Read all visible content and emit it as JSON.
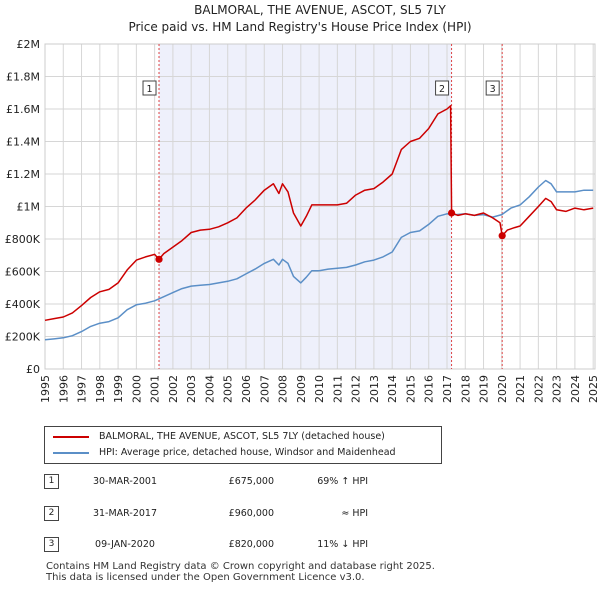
{
  "chart_data": {
    "type": "line",
    "title": "BALMORAL, THE AVENUE, ASCOT, SL5 7LY",
    "subtitle": "Price paid vs. HM Land Registry's House Price Index (HPI)",
    "xlim": [
      1995,
      2025.1
    ],
    "ylim": [
      0,
      2000000
    ],
    "x_ticks": [
      "1995",
      "1996",
      "1997",
      "1998",
      "1999",
      "2000",
      "2001",
      "2002",
      "2003",
      "2004",
      "2005",
      "2006",
      "2007",
      "2008",
      "2009",
      "2010",
      "2011",
      "2012",
      "2013",
      "2014",
      "2015",
      "2016",
      "2017",
      "2018",
      "2019",
      "2020",
      "2021",
      "2022",
      "2023",
      "2024",
      "2025"
    ],
    "y_ticks": [
      {
        "value": 0,
        "label": "£0"
      },
      {
        "value": 200000,
        "label": "£200K"
      },
      {
        "value": 400000,
        "label": "£400K"
      },
      {
        "value": 600000,
        "label": "£600K"
      },
      {
        "value": 800000,
        "label": "£800K"
      },
      {
        "value": 1000000,
        "label": "£1M"
      },
      {
        "value": 1200000,
        "label": "£1.2M"
      },
      {
        "value": 1400000,
        "label": "£1.4M"
      },
      {
        "value": 1600000,
        "label": "£1.6M"
      },
      {
        "value": 1800000,
        "label": "£1.8M"
      },
      {
        "value": 2000000,
        "label": "£2M"
      }
    ],
    "shaded_region": [
      2001.24,
      2017.25
    ],
    "series": [
      {
        "name": "BALMORAL, THE AVENUE, ASCOT, SL5 7LY (detached house)",
        "color": "#cc0000",
        "x": [
          1995,
          1995.5,
          1996,
          1996.5,
          1997,
          1997.5,
          1998,
          1998.5,
          1999,
          1999.5,
          2000,
          2000.5,
          2001,
          2001.24,
          2001.5,
          2002,
          2002.5,
          2003,
          2003.5,
          2004,
          2004.5,
          2005,
          2005.5,
          2006,
          2006.5,
          2007,
          2007.5,
          2007.8,
          2008,
          2008.3,
          2008.6,
          2009,
          2009.3,
          2009.6,
          2010,
          2010.5,
          2011,
          2011.5,
          2012,
          2012.5,
          2013,
          2013.5,
          2014,
          2014.5,
          2015,
          2015.5,
          2016,
          2016.5,
          2017,
          2017.2,
          2017.25,
          2017.6,
          2018,
          2018.5,
          2019,
          2019.5,
          2019.9,
          2020.02,
          2020.3,
          2020.7,
          2021,
          2021.5,
          2022,
          2022.4,
          2022.7,
          2023,
          2023.5,
          2024,
          2024.5,
          2025
        ],
        "values": [
          300000,
          310000,
          320000,
          345000,
          390000,
          440000,
          475000,
          490000,
          530000,
          610000,
          670000,
          690000,
          705000,
          675000,
          710000,
          750000,
          790000,
          840000,
          855000,
          860000,
          875000,
          900000,
          930000,
          990000,
          1040000,
          1100000,
          1140000,
          1080000,
          1140000,
          1090000,
          960000,
          880000,
          940000,
          1010000,
          1010000,
          1010000,
          1010000,
          1020000,
          1070000,
          1100000,
          1110000,
          1150000,
          1200000,
          1350000,
          1400000,
          1420000,
          1480000,
          1570000,
          1600000,
          1620000,
          960000,
          945000,
          955000,
          945000,
          960000,
          930000,
          900000,
          820000,
          855000,
          870000,
          880000,
          940000,
          1000000,
          1050000,
          1030000,
          980000,
          970000,
          990000,
          980000,
          990000
        ]
      },
      {
        "name": "HPI: Average price, detached house, Windsor and Maidenhead",
        "color": "#5b8fc7",
        "x": [
          1995,
          1995.5,
          1996,
          1996.5,
          1997,
          1997.5,
          1998,
          1998.5,
          1999,
          1999.5,
          2000,
          2000.5,
          2001,
          2001.5,
          2002,
          2002.5,
          2003,
          2003.5,
          2004,
          2004.5,
          2005,
          2005.5,
          2006,
          2006.5,
          2007,
          2007.5,
          2007.8,
          2008,
          2008.3,
          2008.6,
          2009,
          2009.3,
          2009.6,
          2010,
          2010.5,
          2011,
          2011.5,
          2012,
          2012.5,
          2013,
          2013.5,
          2014,
          2014.5,
          2015,
          2015.5,
          2016,
          2016.5,
          2017,
          2017.5,
          2018,
          2018.5,
          2019,
          2019.5,
          2020,
          2020.5,
          2021,
          2021.5,
          2022,
          2022.4,
          2022.7,
          2023,
          2023.5,
          2024,
          2024.5,
          2025
        ],
        "values": [
          180000,
          185000,
          192000,
          205000,
          230000,
          262000,
          282000,
          292000,
          315000,
          365000,
          395000,
          405000,
          420000,
          445000,
          470000,
          495000,
          510000,
          515000,
          520000,
          530000,
          540000,
          555000,
          585000,
          615000,
          650000,
          675000,
          640000,
          675000,
          650000,
          570000,
          530000,
          565000,
          605000,
          605000,
          615000,
          620000,
          625000,
          640000,
          660000,
          670000,
          690000,
          720000,
          810000,
          840000,
          850000,
          890000,
          940000,
          955000,
          950000,
          955000,
          945000,
          950000,
          935000,
          950000,
          990000,
          1010000,
          1060000,
          1120000,
          1160000,
          1140000,
          1090000,
          1090000,
          1090000,
          1100000,
          1100000
        ]
      }
    ],
    "sales": [
      {
        "label": "1",
        "x": 2001.24,
        "y": 675000
      },
      {
        "label": "2",
        "x": 2017.25,
        "y": 960000
      },
      {
        "label": "3",
        "x": 2020.02,
        "y": 820000
      }
    ]
  },
  "legend": [
    {
      "label": "BALMORAL, THE AVENUE, ASCOT, SL5 7LY (detached house)",
      "color": "#cc0000"
    },
    {
      "label": "HPI: Average price, detached house, Windsor and Maidenhead",
      "color": "#5b8fc7"
    }
  ],
  "sales_table": [
    {
      "num": "1",
      "date": "30-MAR-2001",
      "price": "£675,000",
      "delta": "69% ↑ HPI"
    },
    {
      "num": "2",
      "date": "31-MAR-2017",
      "price": "£960,000",
      "delta": "≈ HPI"
    },
    {
      "num": "3",
      "date": "09-JAN-2020",
      "price": "£820,000",
      "delta": "11% ↓ HPI"
    }
  ],
  "footer": {
    "line1": "Contains HM Land Registry data © Crown copyright and database right 2025.",
    "line2": "This data is licensed under the Open Government Licence v3.0."
  }
}
